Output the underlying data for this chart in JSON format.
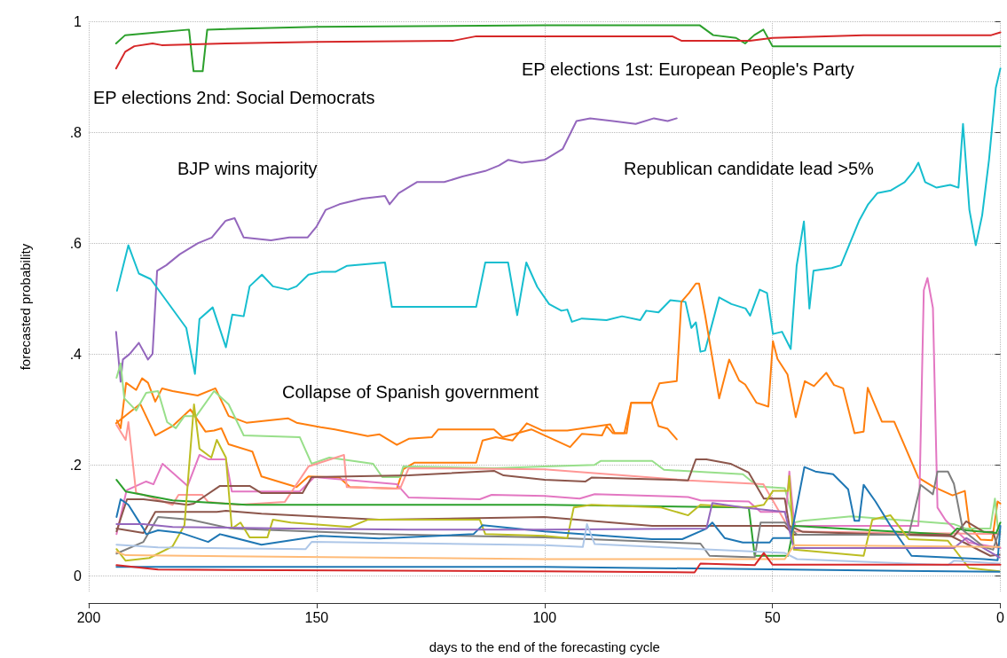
{
  "chart_data": {
    "type": "line",
    "xlabel": "days to the end of the forecasting cycle",
    "ylabel": "forecasted probability",
    "xlim": [
      200,
      0
    ],
    "xticks": [
      200,
      150,
      100,
      50,
      0
    ],
    "ylim": [
      -0.03,
      1
    ],
    "yticks": [
      0,
      {
        "value": 0.2,
        "label": ".2"
      },
      {
        "value": 0.4,
        "label": ".4"
      },
      {
        "value": 0.6,
        "label": ".6"
      },
      {
        "value": 0.8,
        "label": ".8"
      },
      1
    ],
    "grid": true,
    "marker": "none",
    "annotations": [
      "EP elections 2nd: Social Democrats",
      "EP elections 1st: European People's Party",
      "BJP wins majority",
      "Republican candidate lead >5%",
      "Collapse of Spanish government"
    ],
    "series": [
      {
        "color": "#2ca02c",
        "x": [
          194,
          192,
          185,
          178,
          177,
          175,
          174,
          150,
          100,
          66,
          63,
          58,
          56,
          54,
          52,
          50,
          0
        ],
        "values": [
          0.96,
          0.975,
          0.98,
          0.985,
          0.91,
          0.91,
          0.985,
          0.99,
          0.993,
          0.993,
          0.975,
          0.97,
          0.96,
          0.975,
          0.985,
          0.955,
          0.955
        ]
      },
      {
        "color": "#d62728",
        "x": [
          194,
          192,
          190,
          186,
          184,
          170,
          150,
          120,
          115,
          90,
          72,
          70,
          55,
          50,
          30,
          2,
          0
        ],
        "values": [
          0.915,
          0.945,
          0.955,
          0.96,
          0.957,
          0.96,
          0.963,
          0.965,
          0.973,
          0.973,
          0.973,
          0.965,
          0.965,
          0.97,
          0.975,
          0.975,
          0.98
        ]
      },
      {
        "color": "#9467bd",
        "x": [
          194,
          193,
          192.5,
          191,
          189,
          187,
          186,
          185,
          183,
          180,
          176,
          173,
          170,
          168,
          166,
          160,
          156,
          152,
          150,
          148,
          145,
          140,
          135,
          134,
          132,
          128,
          122,
          118,
          113,
          110,
          108,
          105,
          100,
          96,
          93,
          90,
          85,
          80,
          76,
          73,
          71
        ],
        "values": [
          0.44,
          0.35,
          0.39,
          0.4,
          0.42,
          0.39,
          0.4,
          0.55,
          0.56,
          0.58,
          0.6,
          0.61,
          0.64,
          0.645,
          0.61,
          0.605,
          0.61,
          0.61,
          0.63,
          0.66,
          0.67,
          0.68,
          0.685,
          0.67,
          0.69,
          0.71,
          0.71,
          0.72,
          0.73,
          0.74,
          0.75,
          0.745,
          0.75,
          0.77,
          0.82,
          0.825,
          0.82,
          0.815,
          0.825,
          0.82,
          0.825
        ]
      },
      {
        "color": "#17becf",
        "x": [
          193.8,
          191.3,
          189,
          186.4,
          178.6,
          176.7,
          175.7,
          172.8,
          169.9,
          168.5,
          166,
          164.7,
          162,
          159.6,
          156.3,
          154.4,
          151.8,
          149,
          145.9,
          143.3,
          135,
          133.5,
          125,
          115,
          113,
          108,
          106,
          104,
          101.6,
          99,
          96.3,
          95,
          94,
          91.8,
          86.4,
          83,
          79,
          77.7,
          75,
          72.4,
          69.1,
          67.8,
          66.8,
          65.8,
          64.8,
          61.7,
          59,
          55.9,
          54.9,
          52.8,
          51.2,
          49.9,
          47.9,
          46,
          44.7,
          43.1,
          41.9,
          41,
          37,
          35,
          33,
          31,
          29,
          27,
          24,
          21,
          19,
          18,
          16.5,
          14,
          11,
          9.2,
          8.2,
          6.8,
          5.4,
          4,
          2.5,
          1,
          0
        ],
        "values": [
          0.514,
          0.596,
          0.545,
          0.535,
          0.447,
          0.364,
          0.463,
          0.484,
          0.412,
          0.471,
          0.468,
          0.522,
          0.543,
          0.522,
          0.516,
          0.522,
          0.543,
          0.548,
          0.548,
          0.559,
          0.565,
          0.485,
          0.485,
          0.485,
          0.565,
          0.565,
          0.47,
          0.565,
          0.521,
          0.49,
          0.478,
          0.48,
          0.458,
          0.464,
          0.461,
          0.468,
          0.461,
          0.478,
          0.475,
          0.497,
          0.494,
          0.447,
          0.457,
          0.404,
          0.406,
          0.502,
          0.49,
          0.482,
          0.469,
          0.516,
          0.51,
          0.436,
          0.44,
          0.409,
          0.559,
          0.639,
          0.482,
          0.55,
          0.555,
          0.56,
          0.6,
          0.64,
          0.67,
          0.69,
          0.695,
          0.71,
          0.73,
          0.745,
          0.71,
          0.7,
          0.705,
          0.7,
          0.815,
          0.66,
          0.596,
          0.65,
          0.75,
          0.88,
          0.915
        ]
      },
      {
        "color": "#ff7f0e",
        "x": [
          193.8,
          193,
          191.8,
          189.6,
          188.3,
          187,
          185.4,
          183.9,
          181.6,
          176.1,
          172.2,
          169.3,
          165.4,
          156.3,
          154.4,
          149.1,
          146,
          138.8,
          136.2,
          132.4,
          129.8,
          124.7,
          123.3,
          111.1,
          109.2,
          102.9,
          94.4,
          91.8,
          87.4,
          86.4,
          85,
          82.5,
          81,
          76.5,
          74.8,
          71,
          70,
          68.3,
          66.8,
          66.1,
          64.8,
          61.7,
          59.5,
          57.3,
          56,
          53.5,
          50.9,
          49.9,
          48.9,
          46.7,
          44.9,
          42.9,
          40.9,
          38.2,
          36.5,
          34.5,
          32,
          30,
          29.1,
          26,
          23.3,
          18,
          14.8,
          10.5,
          7.8,
          6.8,
          4.3,
          1.8,
          0.6,
          0
        ],
        "values": [
          0.28,
          0.266,
          0.348,
          0.335,
          0.356,
          0.348,
          0.314,
          0.338,
          0.333,
          0.325,
          0.338,
          0.288,
          0.276,
          0.284,
          0.276,
          0.268,
          0.264,
          0.252,
          0.255,
          0.236,
          0.247,
          0.25,
          0.264,
          0.264,
          0.25,
          0.264,
          0.232,
          0.256,
          0.253,
          0.27,
          0.257,
          0.257,
          0.312,
          0.312,
          0.347,
          0.351,
          0.494,
          0.51,
          0.527,
          0.527,
          0.471,
          0.32,
          0.39,
          0.352,
          0.345,
          0.312,
          0.305,
          0.423,
          0.391,
          0.363,
          0.286,
          0.351,
          0.342,
          0.366,
          0.344,
          0.338,
          0.257,
          0.26,
          0.339,
          0.278,
          0.278,
          0.177,
          0.161,
          0.145,
          0.153,
          0.089,
          0.065,
          0.064,
          0.134,
          0.13
        ]
      },
      {
        "color": "#ff7f0e",
        "x": [
          194,
          188.7,
          185.4,
          181.6,
          177.7,
          174.4,
          172.5,
          170.9,
          169.3,
          164.1,
          162.1,
          154.4,
          151.8,
          145,
          142.7,
          132.4,
          131,
          128.5,
          115,
          113.6,
          110.7,
          107,
          103.9,
          100.5,
          95,
          85.6,
          84.6,
          82,
          81,
          76.5,
          75,
          73,
          71
        ],
        "values": [
          0.275,
          0.31,
          0.253,
          0.27,
          0.3,
          0.26,
          0.262,
          0.266,
          0.237,
          0.224,
          0.179,
          0.16,
          0.179,
          0.177,
          0.16,
          0.157,
          0.192,
          0.204,
          0.204,
          0.244,
          0.25,
          0.244,
          0.275,
          0.262,
          0.262,
          0.273,
          0.257,
          0.257,
          0.312,
          0.312,
          0.27,
          0.265,
          0.246
        ]
      },
      {
        "color": "#98df8a",
        "x": [
          193.9,
          193,
          192.2,
          189.6,
          187.4,
          184.8,
          182.8,
          180.9,
          179,
          176.4,
          172.5,
          169.3,
          166,
          153.7,
          151.1,
          147.2,
          137.6,
          135.6,
          131.7,
          131,
          111,
          100,
          89,
          87.7,
          76.4,
          73.8,
          56.5,
          53.2,
          47.3,
          45.3,
          43.3,
          32.7,
          10.2,
          7.5,
          2.2,
          1.2,
          0.6,
          0
        ],
        "values": [
          0.357,
          0.383,
          0.32,
          0.298,
          0.33,
          0.333,
          0.277,
          0.266,
          0.288,
          0.288,
          0.333,
          0.309,
          0.253,
          0.25,
          0.202,
          0.213,
          0.202,
          0.178,
          0.178,
          0.197,
          0.194,
          0.197,
          0.2,
          0.207,
          0.207,
          0.191,
          0.183,
          0.161,
          0.158,
          0.096,
          0.099,
          0.107,
          0.093,
          0.085,
          0.085,
          0.139,
          0.09,
          0.079
        ]
      },
      {
        "color": "#e377c2",
        "x": [
          193.9,
          191.7,
          187.4,
          185.8,
          183.8,
          181.6,
          178.3,
          175.7,
          173.8,
          169.9,
          168.6,
          153.7,
          150.5,
          132.4,
          129.8,
          114.2,
          111.6,
          100,
          92.3,
          89,
          68.5,
          65.8,
          55.2,
          52.6,
          47,
          46.3,
          45.3,
          45,
          18,
          17.8,
          16.8,
          16,
          14.8,
          13.8,
          12,
          7,
          0
        ],
        "values": [
          0.075,
          0.154,
          0.17,
          0.165,
          0.202,
          0.186,
          0.162,
          0.218,
          0.21,
          0.21,
          0.152,
          0.152,
          0.178,
          0.165,
          0.141,
          0.138,
          0.146,
          0.144,
          0.139,
          0.147,
          0.142,
          0.136,
          0.134,
          0.115,
          0.115,
          0.188,
          0.099,
          0.09,
          0.09,
          0.128,
          0.515,
          0.537,
          0.483,
          0.123,
          0.1,
          0.06,
          0.05
        ]
      },
      {
        "color": "#ff9896",
        "x": [
          193.9,
          191.9,
          191.3,
          189.6,
          188,
          181.6,
          180.3,
          175.1,
          173.8,
          167.3,
          157,
          151.8,
          144,
          143.4,
          131.7,
          129.8,
          100,
          68.5,
          52,
          46,
          0
        ],
        "values": [
          0.272,
          0.245,
          0.277,
          0.149,
          0.146,
          0.128,
          0.146,
          0.146,
          0.133,
          0.128,
          0.133,
          0.197,
          0.218,
          0.16,
          0.157,
          0.194,
          0.192,
          0.172,
          0.165,
          0.08,
          0.075
        ]
      },
      {
        "color": "#8c564b",
        "x": [
          193.9,
          191.6,
          188,
          178.3,
          177,
          171.2,
          164.7,
          162.1,
          153.1,
          151.1,
          129.8,
          111,
          109,
          100,
          91,
          89.7,
          68.5,
          66.8,
          64.5,
          59.2,
          55.2,
          51.9,
          47.3,
          46.3,
          43.3,
          10.2,
          7.5,
          3.6,
          1.6,
          0.6
        ],
        "values": [
          0.08,
          0.138,
          0.138,
          0.128,
          0.13,
          0.162,
          0.162,
          0.149,
          0.149,
          0.178,
          0.181,
          0.189,
          0.181,
          0.173,
          0.17,
          0.177,
          0.172,
          0.21,
          0.21,
          0.202,
          0.186,
          0.139,
          0.139,
          0.09,
          0.079,
          0.071,
          0.098,
          0.079,
          0.079,
          0.052
        ]
      },
      {
        "color": "#2ca02c",
        "x": [
          193.9,
          191.9,
          181.6,
          165.4,
          100,
          55.2,
          53.9,
          46.6,
          45.3,
          10.9,
          9.5,
          7.5,
          0.9,
          0
        ],
        "values": [
          0.173,
          0.152,
          0.136,
          0.128,
          0.128,
          0.123,
          0.036,
          0.036,
          0.09,
          0.074,
          0.085,
          0.082,
          0.077,
          0.096
        ]
      },
      {
        "color": "#8c564b",
        "x": [
          193.9,
          188,
          185.4,
          171.9,
          169.9,
          162.1,
          136.3,
          100,
          76.4,
          64.5,
          47.3,
          45.3,
          11.5,
          7.5,
          2.2,
          0.2
        ],
        "values": [
          0.085,
          0.077,
          0.115,
          0.115,
          0.117,
          0.112,
          0.101,
          0.106,
          0.09,
          0.09,
          0.09,
          0.074,
          0.074,
          0.058,
          0.036,
          0.038
        ]
      },
      {
        "color": "#7f7f7f",
        "x": [
          193.9,
          188,
          184.8,
          177.7,
          168.6,
          136.3,
          100,
          65.8,
          63.8,
          53.9,
          52.6,
          47.3,
          44.6,
          20.1,
          17.5,
          14.8,
          13.8,
          11.5,
          10.2,
          8.2,
          3.6,
          1.6,
          0.2
        ],
        "values": [
          0.04,
          0.061,
          0.106,
          0.101,
          0.085,
          0.075,
          0.069,
          0.058,
          0.036,
          0.033,
          0.096,
          0.096,
          0.074,
          0.074,
          0.164,
          0.147,
          0.188,
          0.188,
          0.166,
          0.082,
          0.052,
          0.047,
          0.082
        ]
      },
      {
        "color": "#bcbd22",
        "x": [
          193.9,
          191.9,
          186.7,
          181.6,
          179,
          176.9,
          175.7,
          173.1,
          171.9,
          169.9,
          168.6,
          166.7,
          164.7,
          160.8,
          159.6,
          155.7,
          142.7,
          138.8,
          114.2,
          113,
          100,
          95,
          93.6,
          89.7,
          74.4,
          68.5,
          65.8,
          55.2,
          51.9,
          49.9,
          46.6,
          46.3,
          45.3,
          30,
          28.1,
          24.1,
          20.1,
          11.5,
          6.9,
          0.2
        ],
        "values": [
          0.048,
          0.027,
          0.032,
          0.053,
          0.091,
          0.309,
          0.229,
          0.213,
          0.245,
          0.213,
          0.085,
          0.096,
          0.069,
          0.069,
          0.101,
          0.096,
          0.088,
          0.101,
          0.101,
          0.075,
          0.072,
          0.068,
          0.123,
          0.128,
          0.123,
          0.109,
          0.128,
          0.123,
          0.128,
          0.153,
          0.153,
          0.18,
          0.047,
          0.036,
          0.101,
          0.109,
          0.066,
          0.063,
          0.014,
          0.008
        ]
      },
      {
        "color": "#1f77b4",
        "x": [
          193.9,
          193,
          191.3,
          188,
          187.4,
          184.8,
          179.6,
          173.8,
          171.2,
          162.1,
          149.2,
          136.3,
          115.6,
          113.6,
          100,
          76.4,
          69.8,
          64.5,
          63.2,
          60.5,
          56.5,
          50.6,
          49.9,
          46,
          43,
          40.6,
          36.7,
          33.4,
          32,
          31,
          30,
          27.4,
          24.1,
          19.5,
          3.6,
          0.6,
          0
        ],
        "values": [
          0.106,
          0.138,
          0.128,
          0.085,
          0.075,
          0.082,
          0.077,
          0.061,
          0.075,
          0.056,
          0.072,
          0.067,
          0.075,
          0.091,
          0.08,
          0.066,
          0.066,
          0.085,
          0.096,
          0.068,
          0.06,
          0.06,
          0.068,
          0.068,
          0.196,
          0.188,
          0.183,
          0.156,
          0.099,
          0.099,
          0.164,
          0.134,
          0.09,
          0.036,
          0.03,
          0.028,
          0.09
        ]
      },
      {
        "color": "#9467bd",
        "x": [
          193.9,
          188,
          181.6,
          155.7,
          129.8,
          100,
          64.5,
          63.2,
          56.5,
          47.3,
          45.3,
          10.2,
          7.5,
          0.2
        ],
        "values": [
          0.093,
          0.093,
          0.088,
          0.085,
          0.083,
          0.083,
          0.085,
          0.131,
          0.123,
          0.115,
          0.05,
          0.05,
          0.068,
          0.033
        ]
      },
      {
        "color": "#aec7e8",
        "x": [
          193.9,
          184.8,
          152.4,
          151.1,
          100,
          91.6,
          90.7,
          89,
          47.3,
          44.6,
          11.5,
          10.2,
          0.2
        ],
        "values": [
          0.056,
          0.051,
          0.048,
          0.061,
          0.055,
          0.052,
          0.093,
          0.057,
          0.041,
          0.03,
          0.019,
          0.027,
          0.022
        ]
      },
      {
        "color": "#ffbb78",
        "x": [
          193.9,
          191.9,
          100,
          47.3,
          45.3,
          0.2
        ],
        "values": [
          0.043,
          0.037,
          0.03,
          0.03,
          0.055,
          0.052
        ]
      },
      {
        "color": "#1f77b4",
        "x": [
          193.9,
          100,
          0.2
        ],
        "values": [
          0.016,
          0.016,
          0.007
        ]
      },
      {
        "color": "#d62728",
        "x": [
          193.9,
          184.8,
          100,
          67.1,
          65.8,
          53.9,
          51.9,
          50,
          0
        ],
        "values": [
          0.019,
          0.011,
          0.008,
          0.006,
          0.022,
          0.019,
          0.041,
          0.02,
          0.02
        ]
      }
    ]
  }
}
